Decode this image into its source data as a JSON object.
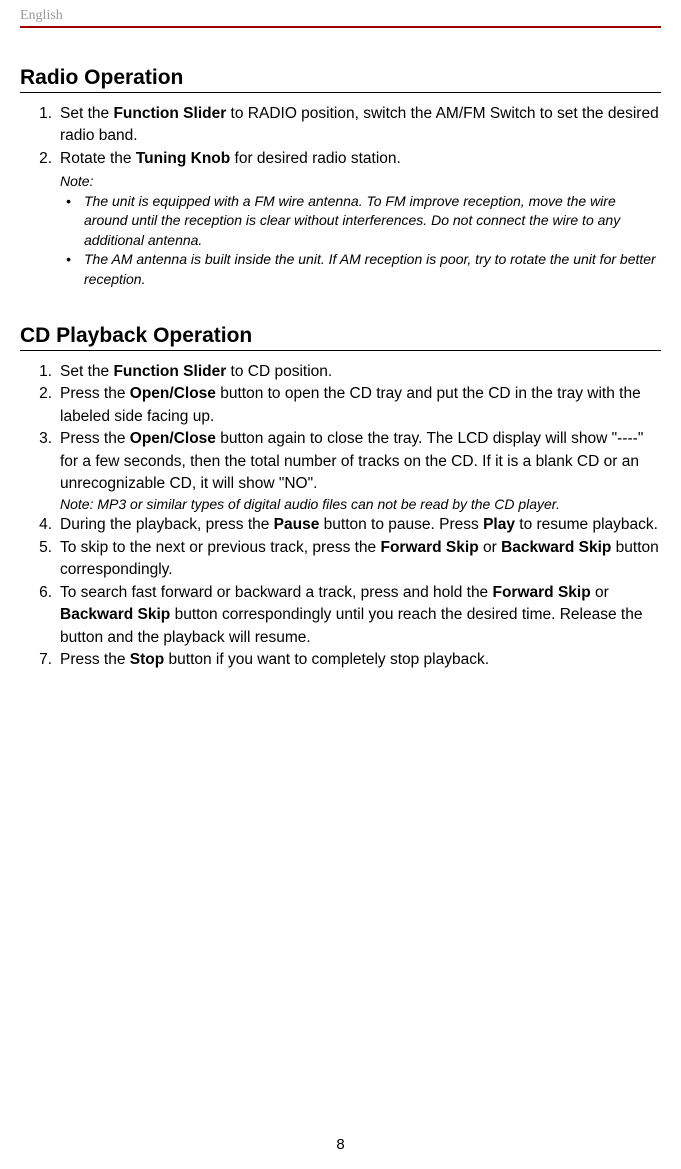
{
  "header": {
    "language": "English"
  },
  "sections": {
    "radio": {
      "title": "Radio Operation",
      "item1_pre": "Set the ",
      "item1_bold": "Function Slider",
      "item1_post": " to RADIO position, switch the AM/FM Switch to set the desired radio band.",
      "item2_pre": "Rotate the ",
      "item2_bold": "Tuning Knob",
      "item2_post": " for desired radio station.",
      "note_label": "Note:",
      "note_bullet1": "The unit is equipped with a FM wire antenna. To FM improve reception, move the wire around until the reception is clear without interferences. Do not connect the wire to any additional antenna.",
      "note_bullet2": "The AM antenna is built inside the unit. If AM reception is poor, try to rotate the unit for better reception."
    },
    "cd": {
      "title": "CD Playback Operation",
      "item1_pre": "Set the ",
      "item1_bold": "Function Slider",
      "item1_post": " to CD position.",
      "item2_pre": "Press the ",
      "item2_bold": "Open/Close",
      "item2_post": " button to open the CD tray and put the CD in the tray with the labeled side facing up.",
      "item3_pre": "Press the ",
      "item3_bold": "Open/Close",
      "item3_post": " button again to close the tray. The LCD display will show \"----\" for a few seconds, then the total number of tracks on the CD. If it is a blank CD or an unrecognizable CD, it will show \"NO\".",
      "item3_note": "Note: MP3 or similar types of digital audio files can not be read by the CD player.",
      "item4_pre": "During the playback, press the ",
      "item4_bold1": "Pause",
      "item4_mid": " button to pause. Press ",
      "item4_bold2": "Play",
      "item4_post": " to resume playback.",
      "item5_pre": "To skip to the next or previous track, press the ",
      "item5_bold1": "Forward Skip",
      "item5_mid": " or ",
      "item5_bold2": "Backward Skip",
      "item5_post": " button correspondingly.",
      "item6_pre": "To search fast forward or backward a track, press and hold the ",
      "item6_bold1": "Forward Skip",
      "item6_mid": " or ",
      "item6_bold2": "Backward Skip",
      "item6_post": " button correspondingly until you reach the desired time. Release the button and the playback will resume.",
      "item7_pre": "Press the ",
      "item7_bold": "Stop",
      "item7_post": " button if you want to completely stop playback."
    }
  },
  "page_number": "8"
}
